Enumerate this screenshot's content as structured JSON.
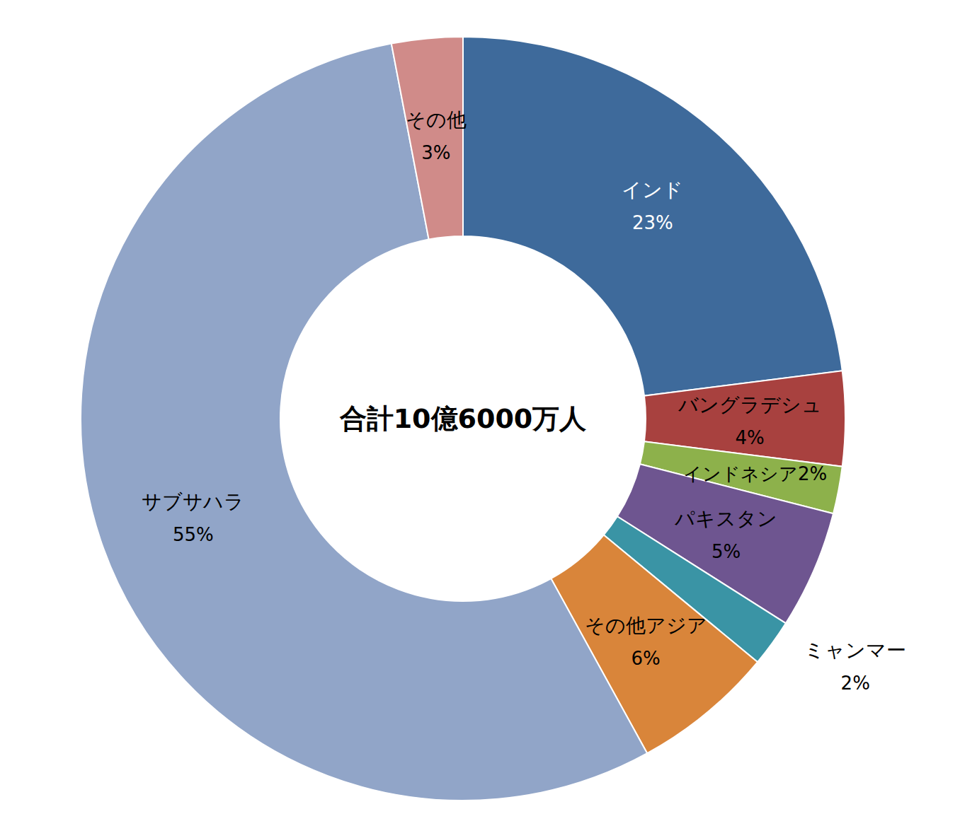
{
  "chart_data": {
    "type": "pie",
    "annotation": "合計10億6000万人",
    "categories": [
      "インド",
      "バングラデシュ",
      "インドネシア",
      "パキスタン",
      "ミャンマー",
      "その他アジア",
      "サブサハラ",
      "その他"
    ],
    "values": [
      23,
      4,
      2,
      5,
      2,
      6,
      55,
      3
    ],
    "value_labels": [
      "23%",
      "4%",
      "2%",
      "5%",
      "2%",
      "6%",
      "55%",
      "3%"
    ],
    "colors": [
      "#3e6a9b",
      "#a8413f",
      "#8db14b",
      "#6e5590",
      "#3a94a5",
      "#d9853a",
      "#91a5c8",
      "#d08b89"
    ],
    "data_labels": true
  }
}
